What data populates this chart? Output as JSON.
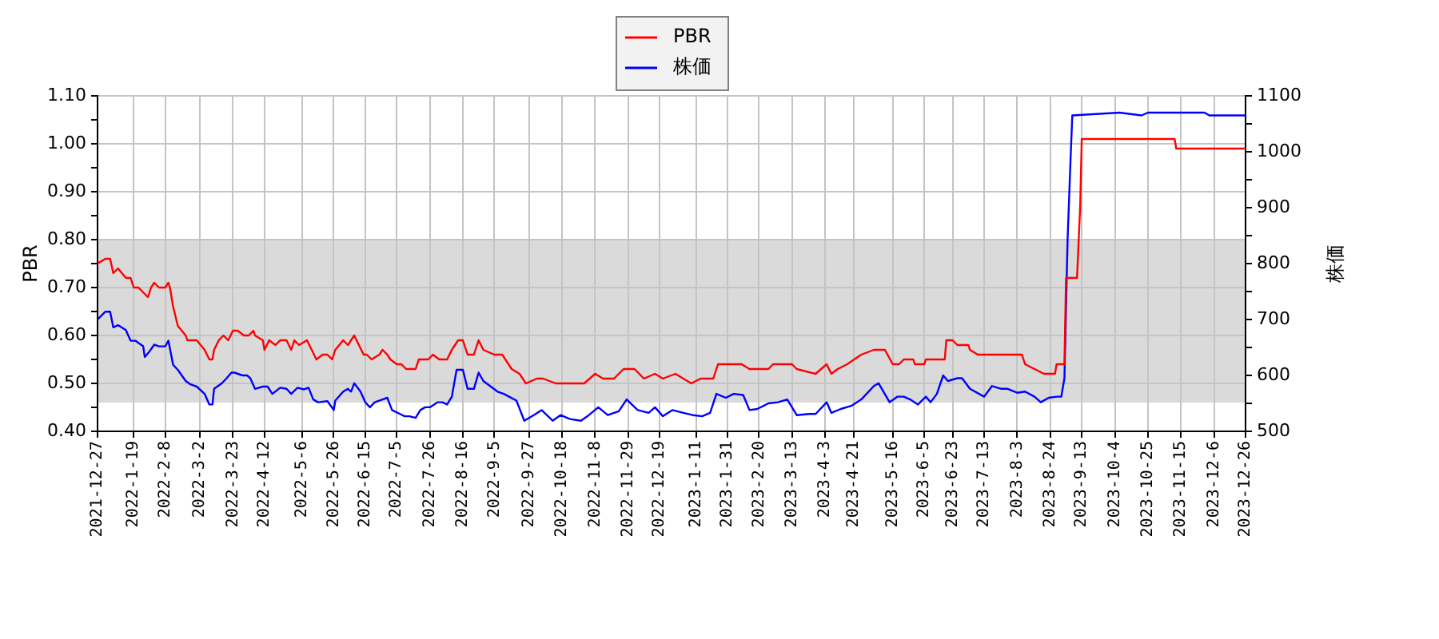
{
  "chart_data": {
    "type": "line",
    "ylabel": "PBR",
    "y2label": "株価",
    "xlim": [
      "2021-12-27",
      "2023-12-26"
    ],
    "xticks": [
      {
        "value": "2021-12-27",
        "label": "2021-12-27"
      },
      {
        "value": "2022-01-19",
        "label": "2022-1-19"
      },
      {
        "value": "2022-02-08",
        "label": "2022-2-8"
      },
      {
        "value": "2022-03-02",
        "label": "2022-3-2"
      },
      {
        "value": "2022-03-23",
        "label": "2022-3-23"
      },
      {
        "value": "2022-04-12",
        "label": "2022-4-12"
      },
      {
        "value": "2022-05-06",
        "label": "2022-5-6"
      },
      {
        "value": "2022-05-26",
        "label": "2022-5-26"
      },
      {
        "value": "2022-06-15",
        "label": "2022-6-15"
      },
      {
        "value": "2022-07-05",
        "label": "2022-7-5"
      },
      {
        "value": "2022-07-26",
        "label": "2022-7-26"
      },
      {
        "value": "2022-08-16",
        "label": "2022-8-16"
      },
      {
        "value": "2022-09-05",
        "label": "2022-9-5"
      },
      {
        "value": "2022-09-27",
        "label": "2022-9-27"
      },
      {
        "value": "2022-10-18",
        "label": "2022-10-18"
      },
      {
        "value": "2022-11-08",
        "label": "2022-11-8"
      },
      {
        "value": "2022-11-29",
        "label": "2022-11-29"
      },
      {
        "value": "2022-12-19",
        "label": "2022-12-19"
      },
      {
        "value": "2023-01-11",
        "label": "2023-1-11"
      },
      {
        "value": "2023-01-31",
        "label": "2023-1-31"
      },
      {
        "value": "2023-02-20",
        "label": "2023-2-20"
      },
      {
        "value": "2023-03-13",
        "label": "2023-3-13"
      },
      {
        "value": "2023-04-03",
        "label": "2023-4-3"
      },
      {
        "value": "2023-04-21",
        "label": "2023-4-21"
      },
      {
        "value": "2023-05-16",
        "label": "2023-5-16"
      },
      {
        "value": "2023-06-05",
        "label": "2023-6-5"
      },
      {
        "value": "2023-06-23",
        "label": "2023-6-23"
      },
      {
        "value": "2023-07-13",
        "label": "2023-7-13"
      },
      {
        "value": "2023-08-03",
        "label": "2023-8-3"
      },
      {
        "value": "2023-08-24",
        "label": "2023-8-24"
      },
      {
        "value": "2023-09-13",
        "label": "2023-9-13"
      },
      {
        "value": "2023-10-04",
        "label": "2023-10-4"
      },
      {
        "value": "2023-10-25",
        "label": "2023-10-25"
      },
      {
        "value": "2023-11-15",
        "label": "2023-11-15"
      },
      {
        "value": "2023-12-06",
        "label": "2023-12-6"
      },
      {
        "value": "2023-12-26",
        "label": "2023-12-26"
      }
    ],
    "ylim": [
      0.4,
      1.1
    ],
    "yticks": [
      {
        "value": 0.4,
        "label": "0.40"
      },
      {
        "value": 0.45,
        "label": null
      },
      {
        "value": 0.5,
        "label": "0.50"
      },
      {
        "value": 0.55,
        "label": null
      },
      {
        "value": 0.6,
        "label": "0.60"
      },
      {
        "value": 0.65,
        "label": null
      },
      {
        "value": 0.7,
        "label": "0.70"
      },
      {
        "value": 0.75,
        "label": null
      },
      {
        "value": 0.8,
        "label": "0.80"
      },
      {
        "value": 0.85,
        "label": null
      },
      {
        "value": 0.9,
        "label": "0.90"
      },
      {
        "value": 0.95,
        "label": null
      },
      {
        "value": 1.0,
        "label": "1.00"
      },
      {
        "value": 1.05,
        "label": null
      },
      {
        "value": 1.1,
        "label": "1.10"
      }
    ],
    "y2lim": [
      500,
      1100
    ],
    "y2ticks": [
      500,
      {
        "value": 550,
        "label": null
      },
      600,
      {
        "value": 650,
        "label": null
      },
      700,
      {
        "value": 750,
        "label": null
      },
      800,
      {
        "value": 850,
        "label": null
      },
      900,
      {
        "value": 950,
        "label": null
      },
      1000,
      {
        "value": 1050,
        "label": null
      },
      1100
    ],
    "grid": true,
    "legend": "top",
    "bands": [
      {
        "axis": "y",
        "from": 0.46,
        "to": 0.8,
        "color": "#dadada"
      }
    ],
    "series": [
      {
        "name": "PBR",
        "color": "#ff0000",
        "x": [
          "2021-12-27",
          "2022-01-01",
          "2022-01-04",
          "2022-01-06",
          "2022-01-09",
          "2022-01-14",
          "2022-01-17",
          "2022-01-19",
          "2022-01-22",
          "2022-01-25",
          "2022-01-28",
          "2022-01-30",
          "2022-02-01",
          "2022-02-04",
          "2022-02-08",
          "2022-02-10",
          "2022-02-11",
          "2022-02-13",
          "2022-02-16",
          "2022-02-21",
          "2022-02-22",
          "2022-02-28",
          "2022-03-05",
          "2022-03-08",
          "2022-03-10",
          "2022-03-11",
          "2022-03-14",
          "2022-03-17",
          "2022-03-20",
          "2022-03-23",
          "2022-03-26",
          "2022-03-30",
          "2022-04-02",
          "2022-04-05",
          "2022-04-06",
          "2022-04-11",
          "2022-04-12",
          "2022-04-15",
          "2022-04-19",
          "2022-04-22",
          "2022-04-26",
          "2022-04-29",
          "2022-05-01",
          "2022-05-04",
          "2022-05-09",
          "2022-05-12",
          "2022-05-15",
          "2022-05-19",
          "2022-05-22",
          "2022-05-25",
          "2022-05-27",
          "2022-06-01",
          "2022-06-04",
          "2022-06-08",
          "2022-06-11",
          "2022-06-14",
          "2022-06-16",
          "2022-06-19",
          "2022-06-24",
          "2022-06-26",
          "2022-06-29",
          "2022-07-01",
          "2022-07-05",
          "2022-07-08",
          "2022-07-11",
          "2022-07-17",
          "2022-07-19",
          "2022-07-25",
          "2022-07-28",
          "2022-08-01",
          "2022-08-06",
          "2022-08-09",
          "2022-08-13",
          "2022-08-16",
          "2022-08-19",
          "2022-08-23",
          "2022-08-26",
          "2022-08-29",
          "2022-09-05",
          "2022-09-10",
          "2022-09-16",
          "2022-09-21",
          "2022-09-25",
          "2022-10-02",
          "2022-10-06",
          "2022-10-14",
          "2022-10-20",
          "2022-10-27",
          "2022-11-01",
          "2022-11-08",
          "2022-11-13",
          "2022-11-20",
          "2022-11-26",
          "2022-12-03",
          "2022-12-09",
          "2022-12-16",
          "2022-12-21",
          "2022-12-29",
          "2023-01-08",
          "2023-01-14",
          "2023-01-22",
          "2023-01-25",
          "2023-02-09",
          "2023-02-14",
          "2023-02-26",
          "2023-03-01",
          "2023-03-13",
          "2023-03-16",
          "2023-03-28",
          "2023-04-04",
          "2023-04-07",
          "2023-04-11",
          "2023-04-17",
          "2023-04-26",
          "2023-05-04",
          "2023-05-11",
          "2023-05-16",
          "2023-05-20",
          "2023-05-23",
          "2023-05-29",
          "2023-05-30",
          "2023-06-05",
          "2023-06-06",
          "2023-06-18",
          "2023-06-19",
          "2023-06-23",
          "2023-06-26",
          "2023-07-03",
          "2023-07-04",
          "2023-07-09",
          "2023-08-06",
          "2023-08-08",
          "2023-08-14",
          "2023-08-20",
          "2023-08-27",
          "2023-08-28",
          "2023-09-02",
          "2023-09-03",
          "2023-09-10",
          "2023-09-12",
          "2023-09-13",
          "2023-11-11",
          "2023-11-12",
          "2023-12-26"
        ],
        "values": [
          0.75,
          0.76,
          0.76,
          0.73,
          0.74,
          0.72,
          0.72,
          0.7,
          0.7,
          0.69,
          0.68,
          0.7,
          0.71,
          0.7,
          0.7,
          0.71,
          0.7,
          0.66,
          0.62,
          0.6,
          0.59,
          0.59,
          0.57,
          0.55,
          0.55,
          0.57,
          0.59,
          0.6,
          0.59,
          0.61,
          0.61,
          0.6,
          0.6,
          0.61,
          0.6,
          0.59,
          0.57,
          0.59,
          0.58,
          0.59,
          0.59,
          0.57,
          0.59,
          0.58,
          0.59,
          0.57,
          0.55,
          0.56,
          0.56,
          0.55,
          0.57,
          0.59,
          0.58,
          0.6,
          0.58,
          0.56,
          0.56,
          0.55,
          0.56,
          0.57,
          0.56,
          0.55,
          0.54,
          0.54,
          0.53,
          0.53,
          0.55,
          0.55,
          0.56,
          0.55,
          0.55,
          0.57,
          0.59,
          0.59,
          0.56,
          0.56,
          0.59,
          0.57,
          0.56,
          0.56,
          0.53,
          0.52,
          0.5,
          0.51,
          0.51,
          0.5,
          0.5,
          0.5,
          0.5,
          0.52,
          0.51,
          0.51,
          0.53,
          0.53,
          0.51,
          0.52,
          0.51,
          0.52,
          0.5,
          0.51,
          0.51,
          0.54,
          0.54,
          0.53,
          0.53,
          0.54,
          0.54,
          0.53,
          0.52,
          0.54,
          0.52,
          0.53,
          0.54,
          0.56,
          0.57,
          0.57,
          0.54,
          0.54,
          0.55,
          0.55,
          0.54,
          0.54,
          0.55,
          0.55,
          0.59,
          0.59,
          0.58,
          0.58,
          0.57,
          0.56,
          0.56,
          0.54,
          0.53,
          0.52,
          0.52,
          0.54,
          0.54,
          0.72,
          0.72,
          0.87,
          1.01,
          1.01,
          0.99,
          0.99
        ]
      },
      {
        "name": "株価",
        "color": "#0000ff",
        "axis": "y2",
        "x": [
          "2021-12-27",
          "2022-01-01",
          "2022-01-04",
          "2022-01-06",
          "2022-01-09",
          "2022-01-14",
          "2022-01-17",
          "2022-01-20",
          "2022-01-25",
          "2022-01-26",
          "2022-01-29",
          "2022-02-01",
          "2022-02-04",
          "2022-02-08",
          "2022-02-10",
          "2022-02-13",
          "2022-02-16",
          "2022-02-21",
          "2022-02-24",
          "2022-02-28",
          "2022-03-05",
          "2022-03-08",
          "2022-03-10",
          "2022-03-11",
          "2022-03-16",
          "2022-03-19",
          "2022-03-22",
          "2022-03-24",
          "2022-03-29",
          "2022-04-01",
          "2022-04-03",
          "2022-04-06",
          "2022-04-11",
          "2022-04-14",
          "2022-04-17",
          "2022-04-22",
          "2022-04-26",
          "2022-04-29",
          "2022-05-03",
          "2022-05-07",
          "2022-05-10",
          "2022-05-13",
          "2022-05-16",
          "2022-05-22",
          "2022-05-26",
          "2022-05-27",
          "2022-06-01",
          "2022-06-04",
          "2022-06-06",
          "2022-06-08",
          "2022-06-12",
          "2022-06-15",
          "2022-06-18",
          "2022-06-21",
          "2022-06-26",
          "2022-06-29",
          "2022-07-02",
          "2022-07-07",
          "2022-07-10",
          "2022-07-13",
          "2022-07-17",
          "2022-07-20",
          "2022-07-23",
          "2022-07-26",
          "2022-07-31",
          "2022-08-03",
          "2022-08-06",
          "2022-08-09",
          "2022-08-12",
          "2022-08-16",
          "2022-08-19",
          "2022-08-23",
          "2022-08-26",
          "2022-08-29",
          "2022-09-07",
          "2022-09-11",
          "2022-09-19",
          "2022-09-24",
          "2022-09-30",
          "2022-10-05",
          "2022-10-12",
          "2022-10-17",
          "2022-10-23",
          "2022-10-30",
          "2022-11-04",
          "2022-11-10",
          "2022-11-16",
          "2022-11-23",
          "2022-11-28",
          "2022-12-05",
          "2022-12-12",
          "2022-12-16",
          "2022-12-21",
          "2022-12-27",
          "2023-01-03",
          "2023-01-09",
          "2023-01-15",
          "2023-01-20",
          "2023-01-24",
          "2023-01-30",
          "2023-02-04",
          "2023-02-10",
          "2023-02-14",
          "2023-02-19",
          "2023-02-26",
          "2023-03-04",
          "2023-03-10",
          "2023-03-16",
          "2023-03-24",
          "2023-03-28",
          "2023-04-04",
          "2023-04-07",
          "2023-04-13",
          "2023-04-20",
          "2023-04-26",
          "2023-05-04",
          "2023-05-07",
          "2023-05-14",
          "2023-05-19",
          "2023-05-23",
          "2023-05-27",
          "2023-06-01",
          "2023-06-06",
          "2023-06-09",
          "2023-06-13",
          "2023-06-17",
          "2023-06-20",
          "2023-06-26",
          "2023-06-29",
          "2023-07-04",
          "2023-07-13",
          "2023-07-18",
          "2023-07-24",
          "2023-07-28",
          "2023-08-03",
          "2023-08-08",
          "2023-08-14",
          "2023-08-18",
          "2023-08-23",
          "2023-08-28",
          "2023-08-31",
          "2023-09-02",
          "2023-09-03",
          "2023-09-04",
          "2023-09-06",
          "2023-09-07",
          "2023-10-07",
          "2023-10-21",
          "2023-10-25",
          "2023-11-30",
          "2023-12-03",
          "2023-12-26"
        ],
        "values": [
          700,
          714,
          714,
          686,
          690,
          681,
          662,
          662,
          652,
          633,
          643,
          655,
          652,
          652,
          662,
          619,
          610,
          590,
          584,
          580,
          567,
          548,
          548,
          576,
          586,
          595,
          605,
          605,
          600,
          600,
          595,
          576,
          580,
          580,
          567,
          578,
          576,
          567,
          578,
          575,
          578,
          557,
          552,
          554,
          538,
          555,
          571,
          576,
          571,
          586,
          571,
          552,
          543,
          552,
          557,
          560,
          538,
          531,
          527,
          527,
          524,
          538,
          543,
          543,
          552,
          552,
          548,
          562,
          610,
          610,
          576,
          576,
          605,
          590,
          571,
          567,
          555,
          519,
          529,
          538,
          519,
          529,
          522,
          519,
          529,
          543,
          529,
          536,
          557,
          538,
          533,
          543,
          527,
          538,
          533,
          529,
          527,
          533,
          567,
          560,
          567,
          565,
          538,
          540,
          550,
          552,
          557,
          529,
          531,
          531,
          552,
          533,
          540,
          546,
          557,
          581,
          586,
          552,
          562,
          562,
          557,
          548,
          562,
          552,
          567,
          600,
          590,
          595,
          595,
          576,
          562,
          581,
          576,
          576,
          569,
          571,
          562,
          552,
          560,
          562,
          562,
          595,
          719,
          843,
          995,
          1065,
          1070,
          1065,
          1070,
          1070,
          1065,
          1065
        ]
      }
    ]
  }
}
